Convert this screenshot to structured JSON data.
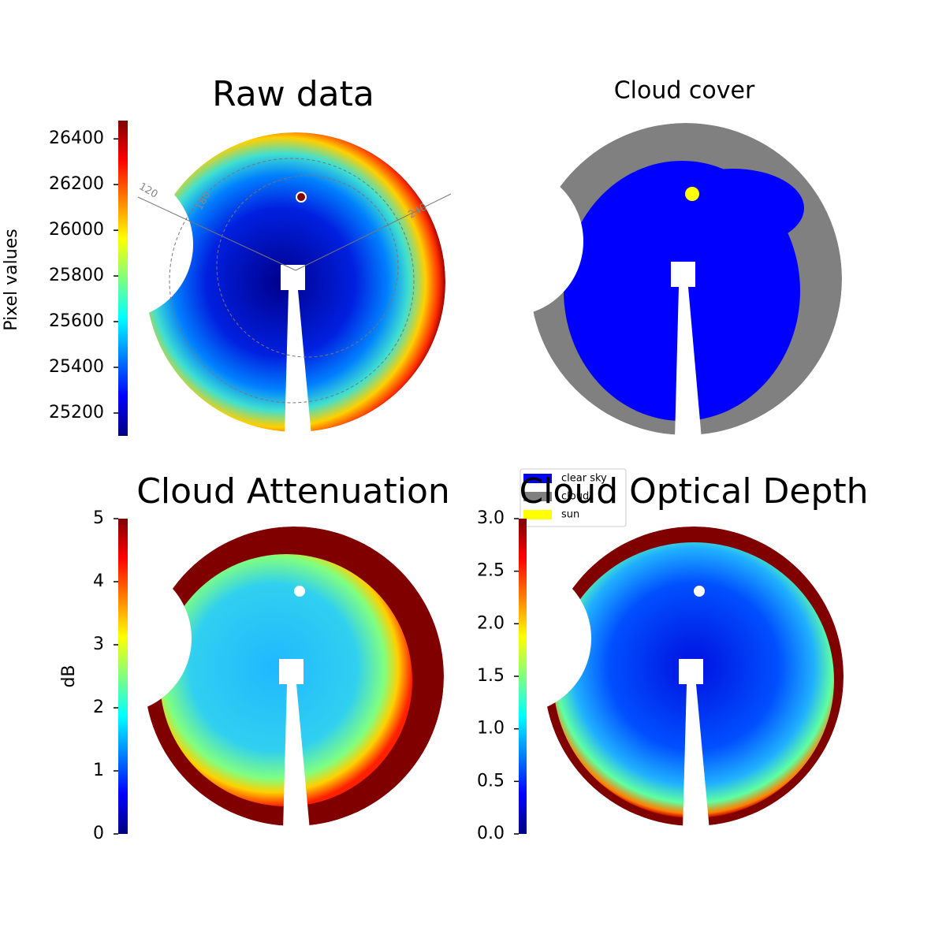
{
  "chart_data": [
    {
      "type": "image",
      "title": "Raw data",
      "ylabel": "Pixel values",
      "ylim": [
        25100,
        26480
      ],
      "yticks": [
        25200,
        25400,
        25600,
        25800,
        26000,
        26200,
        26400
      ],
      "annotations": [
        "120",
        "180",
        "240"
      ]
    },
    {
      "type": "image",
      "title": "Cloud cover",
      "legend": [
        {
          "name": "clear sky",
          "color": "#0000ff"
        },
        {
          "name": "cloud",
          "color": "#808080"
        },
        {
          "name": "sun",
          "color": "#ffff00"
        }
      ]
    },
    {
      "type": "image",
      "title": "Cloud Attenuation",
      "ylabel": "dB",
      "ylim": [
        0,
        5
      ],
      "yticks": [
        0,
        1,
        2,
        3,
        4,
        5
      ]
    },
    {
      "type": "image",
      "title": "Cloud Optical Depth",
      "ylim": [
        0,
        3
      ],
      "yticks": [
        {
          "value": 0,
          "label": "0.0"
        },
        0.5,
        {
          "value": 1,
          "label": "1.0"
        },
        1.5,
        {
          "value": 2,
          "label": "2.0"
        },
        2.5,
        {
          "value": 3,
          "label": "3.0"
        }
      ]
    }
  ]
}
